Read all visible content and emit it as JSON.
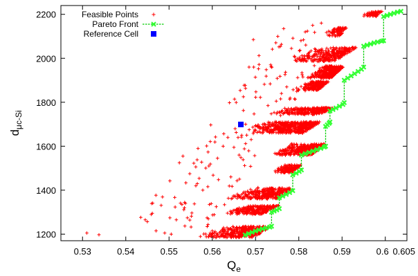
{
  "chart_data": {
    "type": "scatter",
    "xlabel": {
      "main": "Q",
      "sub": "e"
    },
    "ylabel": {
      "main": "d",
      "sub": "μc-Si"
    },
    "xlim": [
      0.525,
      0.605
    ],
    "ylim": [
      1170,
      2240
    ],
    "x_ticks": [
      {
        "value": 0.53,
        "label": "0.53"
      },
      {
        "value": 0.54,
        "label": "0.54"
      },
      {
        "value": 0.55,
        "label": "0.55"
      },
      {
        "value": 0.56,
        "label": "0.56"
      },
      {
        "value": 0.57,
        "label": "0.57"
      },
      {
        "value": 0.58,
        "label": "0.58"
      },
      {
        "value": 0.59,
        "label": "0.59"
      },
      {
        "value": 0.6,
        "label": "0.6"
      },
      {
        "value": 0.605,
        "label": "0.605"
      }
    ],
    "y_ticks": [
      {
        "value": 1200,
        "label": "1200"
      },
      {
        "value": 1400,
        "label": "1400"
      },
      {
        "value": 1600,
        "label": "1600"
      },
      {
        "value": 1800,
        "label": "1800"
      },
      {
        "value": 2000,
        "label": "2000"
      },
      {
        "value": 2200,
        "label": "2200"
      }
    ],
    "grid": false,
    "legend": {
      "position": "top-left",
      "entries": [
        {
          "label": "Feasible Points",
          "color": "#ff0000",
          "marker": "plus"
        },
        {
          "label": "Pareto Front",
          "color": "#00cc00",
          "marker": "cross-dashed-line"
        },
        {
          "label": "Reference Cell",
          "color": "#0000ff",
          "marker": "square"
        }
      ]
    },
    "series": [
      {
        "name": "Feasible Points",
        "color": "#ff0000",
        "marker": "plus",
        "bands": [
          {
            "y": [
              1185,
              1235
            ],
            "xLeft": [
              0.555,
              0.5635
            ],
            "xRight": [
              0.5695,
              0.5735
            ],
            "n": 360,
            "skew": 0.65
          },
          {
            "y": [
              1290,
              1330
            ],
            "xLeft": [
              0.562,
              0.567
            ],
            "xRight": [
              0.5715,
              0.5755
            ],
            "n": 240,
            "skew": 0.6
          },
          {
            "y": [
              1360,
              1410
            ],
            "xLeft": [
              0.563,
              0.5685
            ],
            "xRight": [
              0.575,
              0.5785
            ],
            "n": 280,
            "skew": 0.6
          },
          {
            "y": [
              1480,
              1515
            ],
            "xLeft": [
              0.574,
              0.576
            ],
            "xRight": [
              0.5785,
              0.5805
            ],
            "n": 150,
            "skew": 0.6
          },
          {
            "y": [
              1560,
              1610
            ],
            "xLeft": [
              0.5735,
              0.578
            ],
            "xRight": [
              0.583,
              0.586
            ],
            "n": 360,
            "skew": 0.6
          },
          {
            "y": [
              1660,
              1710
            ],
            "xLeft": [
              0.567,
              0.571
            ],
            "xRight": [
              0.581,
              0.585
            ],
            "n": 480,
            "skew": 0.55
          },
          {
            "y": [
              1745,
              1775
            ],
            "xLeft": [
              0.5725,
              0.576
            ],
            "xRight": [
              0.585,
              0.588
            ],
            "n": 260,
            "skew": 0.5
          },
          {
            "y": [
              1855,
              1895
            ],
            "xLeft": [
              0.5785,
              0.582
            ],
            "xRight": [
              0.5845,
              0.587
            ],
            "n": 200,
            "skew": 0.5
          },
          {
            "y": [
              1910,
              1965
            ],
            "xLeft": [
              0.5815,
              0.585
            ],
            "xRight": [
              0.5875,
              0.5905
            ],
            "n": 340,
            "skew": 0.55
          },
          {
            "y": [
              1985,
              2050
            ],
            "xLeft": [
              0.5775,
              0.5835
            ],
            "xRight": [
              0.588,
              0.5935
            ],
            "n": 300,
            "skew": 0.5
          },
          {
            "y": [
              2100,
              2140
            ],
            "xLeft": [
              0.5855,
              0.5875
            ],
            "xRight": [
              0.5895,
              0.591
            ],
            "n": 80,
            "skew": 0.5
          },
          {
            "y": [
              2190,
              2215
            ],
            "xLeft": [
              0.5945,
              0.596
            ],
            "xRight": [
              0.598,
              0.5995
            ],
            "n": 60,
            "skew": 0.5
          }
        ],
        "scatter_region": {
          "x": [
            0.545,
            0.58
          ],
          "y": [
            1230,
            2130
          ],
          "slope_x_per_100": 0.0036,
          "n": 150
        },
        "points": [
          [
            0.531,
            1205
          ],
          [
            0.5338,
            1197
          ],
          [
            0.5445,
            1265
          ],
          [
            0.547,
            1215
          ],
          [
            0.549,
            1205
          ],
          [
            0.5505,
            1200
          ],
          [
            0.5532,
            1555
          ],
          [
            0.5538,
            1340
          ],
          [
            0.5548,
            1475
          ],
          [
            0.5562,
            1420
          ],
          [
            0.5578,
            1400
          ],
          [
            0.5592,
            1510
          ],
          [
            0.5602,
            1468
          ],
          [
            0.5612,
            1545
          ],
          [
            0.5625,
            1600
          ],
          [
            0.5636,
            1640
          ],
          [
            0.565,
            1595
          ],
          [
            0.5662,
            1560
          ],
          [
            0.5668,
            1650
          ],
          [
            0.5677,
            1612
          ],
          [
            0.5685,
            1960
          ],
          [
            0.5695,
            2085
          ],
          [
            0.5708,
            2012
          ],
          [
            0.5735,
            1970
          ],
          [
            0.5748,
            1805
          ],
          [
            0.576,
            1840
          ],
          [
            0.5765,
            2135
          ],
          [
            0.5772,
            1870
          ],
          [
            0.5783,
            2045
          ],
          [
            0.5795,
            1865
          ],
          [
            0.5805,
            2080
          ],
          [
            0.5815,
            2120
          ],
          [
            0.5832,
            2150
          ],
          [
            0.5852,
            2160
          ],
          [
            0.5952,
            2200
          ]
        ]
      },
      {
        "name": "Pareto Front",
        "color": "#00cc00",
        "marker": "cross",
        "points": [
          [
            0.5676,
            1196
          ],
          [
            0.5684,
            1202
          ],
          [
            0.5692,
            1208
          ],
          [
            0.57,
            1214
          ],
          [
            0.5708,
            1219
          ],
          [
            0.5716,
            1224
          ],
          [
            0.5724,
            1228
          ],
          [
            0.5733,
            1232
          ],
          [
            0.5737,
            1236
          ],
          [
            0.5737,
            1300
          ],
          [
            0.5743,
            1305
          ],
          [
            0.5749,
            1310
          ],
          [
            0.5755,
            1316
          ],
          [
            0.5755,
            1365
          ],
          [
            0.5763,
            1373
          ],
          [
            0.5771,
            1381
          ],
          [
            0.5779,
            1389
          ],
          [
            0.5786,
            1398
          ],
          [
            0.5786,
            1470
          ],
          [
            0.5794,
            1477
          ],
          [
            0.5801,
            1485
          ],
          [
            0.5806,
            1492
          ],
          [
            0.5806,
            1560
          ],
          [
            0.5815,
            1566
          ],
          [
            0.5824,
            1572
          ],
          [
            0.5833,
            1578
          ],
          [
            0.5842,
            1584
          ],
          [
            0.5851,
            1590
          ],
          [
            0.5859,
            1596
          ],
          [
            0.5862,
            1600
          ],
          [
            0.5862,
            1690
          ],
          [
            0.5866,
            1697
          ],
          [
            0.587,
            1704
          ],
          [
            0.5872,
            1710
          ],
          [
            0.5872,
            1760
          ],
          [
            0.5879,
            1767
          ],
          [
            0.5886,
            1774
          ],
          [
            0.5894,
            1782
          ],
          [
            0.5902,
            1790
          ],
          [
            0.5905,
            1798
          ],
          [
            0.5905,
            1900
          ],
          [
            0.5913,
            1910
          ],
          [
            0.5921,
            1920
          ],
          [
            0.5929,
            1930
          ],
          [
            0.5937,
            1940
          ],
          [
            0.5945,
            1950
          ],
          [
            0.595,
            1960
          ],
          [
            0.595,
            2055
          ],
          [
            0.5958,
            2060
          ],
          [
            0.5966,
            2065
          ],
          [
            0.5974,
            2070
          ],
          [
            0.5982,
            2074
          ],
          [
            0.5992,
            2078
          ],
          [
            0.5996,
            2080
          ],
          [
            0.5996,
            2190
          ],
          [
            0.6004,
            2195
          ],
          [
            0.6012,
            2200
          ],
          [
            0.602,
            2205
          ],
          [
            0.6028,
            2210
          ],
          [
            0.6036,
            2214
          ]
        ]
      },
      {
        "name": "Reference Cell",
        "color": "#0000ff",
        "marker": "square",
        "points": [
          [
            0.5666,
            1699
          ]
        ]
      }
    ]
  }
}
